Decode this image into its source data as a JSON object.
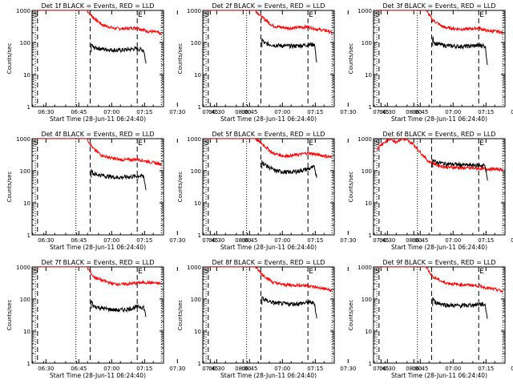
{
  "chart_data": {
    "type": "line",
    "grid": false,
    "yscale": "log",
    "ylim": [
      1,
      1000
    ],
    "ylabel": "Counts/sec",
    "xlabel": "Start Time (28-Jun-11 06:24:40)",
    "x_ticks": [
      "06:30",
      "06:45",
      "07:00",
      "07:15",
      "07:30",
      "07:45",
      "08:00"
    ],
    "y_ticks": [
      "1",
      "10",
      "100",
      "1000"
    ],
    "x_range_minutes": [
      -1.0,
      59.0
    ],
    "markers": {
      "dotted": [
        0.5,
        19.0,
        58.0
      ],
      "dashed": [
        1.5,
        25.5,
        47.0
      ]
    },
    "marker_labels": [
      "S",
      "E"
    ],
    "series_colors": {
      "events": "#000000",
      "lld": "#ff0000"
    },
    "panels": [
      {
        "title": "Det 1f BLACK = Events, RED = LLD",
        "events": [
          [
            26,
            90
          ],
          [
            27,
            70
          ],
          [
            32,
            62
          ],
          [
            38,
            57
          ],
          [
            42,
            60
          ],
          [
            46,
            64
          ],
          [
            48,
            62
          ],
          [
            50,
            58
          ],
          [
            51,
            22
          ]
        ],
        "lld": [
          [
            0.5,
            1000
          ],
          [
            6,
            1000
          ],
          [
            24,
            1000
          ],
          [
            27,
            600
          ],
          [
            31,
            360
          ],
          [
            36,
            280
          ],
          [
            40,
            270
          ],
          [
            44,
            280
          ],
          [
            47,
            290
          ],
          [
            51,
            230
          ],
          [
            56,
            210
          ],
          [
            58,
            180
          ]
        ]
      },
      {
        "title": "Det 2f BLACK = Events, RED = LLD",
        "events": [
          [
            26,
            130
          ],
          [
            27,
            95
          ],
          [
            32,
            82
          ],
          [
            38,
            78
          ],
          [
            42,
            79
          ],
          [
            46,
            84
          ],
          [
            48,
            86
          ],
          [
            50,
            88
          ],
          [
            51,
            24
          ]
        ],
        "lld": [
          [
            0.5,
            1000
          ],
          [
            6,
            1000
          ],
          [
            23,
            1000
          ],
          [
            26,
            620
          ],
          [
            31,
            330
          ],
          [
            36,
            290
          ],
          [
            40,
            280
          ],
          [
            44,
            300
          ],
          [
            47,
            310
          ],
          [
            51,
            260
          ],
          [
            56,
            230
          ],
          [
            58,
            200
          ]
        ]
      },
      {
        "title": "Det 3f BLACK = Events, RED = LLD",
        "events": [
          [
            26,
            140
          ],
          [
            27,
            95
          ],
          [
            32,
            80
          ],
          [
            38,
            76
          ],
          [
            42,
            77
          ],
          [
            46,
            80
          ],
          [
            48,
            82
          ],
          [
            50,
            78
          ],
          [
            51,
            20
          ]
        ],
        "lld": [
          [
            0.5,
            1000
          ],
          [
            6,
            1000
          ],
          [
            23,
            1000
          ],
          [
            26,
            500
          ],
          [
            31,
            300
          ],
          [
            36,
            270
          ],
          [
            40,
            260
          ],
          [
            44,
            270
          ],
          [
            47,
            280
          ],
          [
            51,
            230
          ],
          [
            56,
            220
          ],
          [
            58,
            200
          ]
        ]
      },
      {
        "title": "Det 4f BLACK = Events, RED = LLD",
        "events": [
          [
            26,
            110
          ],
          [
            27,
            80
          ],
          [
            32,
            70
          ],
          [
            38,
            62
          ],
          [
            42,
            64
          ],
          [
            46,
            67
          ],
          [
            48,
            70
          ],
          [
            50,
            66
          ],
          [
            51,
            25
          ]
        ],
        "lld": [
          [
            0.5,
            1000
          ],
          [
            6,
            1000
          ],
          [
            24,
            1000
          ],
          [
            27,
            480
          ],
          [
            31,
            300
          ],
          [
            36,
            240
          ],
          [
            40,
            220
          ],
          [
            44,
            220
          ],
          [
            47,
            230
          ],
          [
            51,
            200
          ],
          [
            56,
            170
          ],
          [
            58,
            160
          ]
        ]
      },
      {
        "title": "Det 5f BLACK = Events, RED = LLD",
        "events": [
          [
            26,
            210
          ],
          [
            27,
            160
          ],
          [
            32,
            100
          ],
          [
            38,
            90
          ],
          [
            42,
            95
          ],
          [
            46,
            110
          ],
          [
            48,
            120
          ],
          [
            50,
            130
          ],
          [
            51,
            60
          ]
        ],
        "lld": [
          [
            0.5,
            1000
          ],
          [
            6,
            1000
          ],
          [
            23,
            1000
          ],
          [
            26,
            700
          ],
          [
            31,
            350
          ],
          [
            36,
            290
          ],
          [
            40,
            300
          ],
          [
            44,
            330
          ],
          [
            47,
            360
          ],
          [
            51,
            320
          ],
          [
            56,
            280
          ],
          [
            58,
            260
          ]
        ]
      },
      {
        "title": "Det 6f BLACK = Events, RED = LLD",
        "events": [
          [
            26,
            230
          ],
          [
            27,
            190
          ],
          [
            32,
            165
          ],
          [
            38,
            155
          ],
          [
            42,
            150
          ],
          [
            46,
            148
          ],
          [
            48,
            148
          ],
          [
            50,
            145
          ],
          [
            51,
            50
          ]
        ],
        "lld": [
          [
            0.5,
            500
          ],
          [
            3,
            700
          ],
          [
            7,
            1000
          ],
          [
            9,
            800
          ],
          [
            12,
            1000
          ],
          [
            14,
            900
          ],
          [
            17,
            700
          ],
          [
            20,
            400
          ],
          [
            24,
            200
          ],
          [
            28,
            150
          ],
          [
            32,
            130
          ],
          [
            38,
            125
          ],
          [
            44,
            120
          ],
          [
            50,
            115
          ],
          [
            58,
            110
          ]
        ]
      },
      {
        "title": "Det 7f BLACK = Events, RED = LLD",
        "events": [
          [
            26,
            90
          ],
          [
            27,
            60
          ],
          [
            32,
            50
          ],
          [
            38,
            45
          ],
          [
            42,
            47
          ],
          [
            46,
            55
          ],
          [
            48,
            58
          ],
          [
            50,
            55
          ],
          [
            51,
            28
          ]
        ],
        "lld": [
          [
            0.5,
            1000
          ],
          [
            6,
            1000
          ],
          [
            24,
            1000
          ],
          [
            27,
            500
          ],
          [
            31,
            380
          ],
          [
            36,
            300
          ],
          [
            40,
            290
          ],
          [
            44,
            300
          ],
          [
            47,
            320
          ],
          [
            51,
            330
          ],
          [
            56,
            310
          ],
          [
            58,
            300
          ]
        ]
      },
      {
        "title": "Det 8f BLACK = Events, RED = LLD",
        "events": [
          [
            26,
            120
          ],
          [
            27,
            95
          ],
          [
            32,
            75
          ],
          [
            38,
            70
          ],
          [
            42,
            72
          ],
          [
            46,
            76
          ],
          [
            48,
            78
          ],
          [
            50,
            75
          ],
          [
            51,
            25
          ]
        ],
        "lld": [
          [
            0.5,
            1000
          ],
          [
            6,
            1000
          ],
          [
            23,
            1000
          ],
          [
            26,
            600
          ],
          [
            31,
            330
          ],
          [
            36,
            280
          ],
          [
            40,
            270
          ],
          [
            44,
            270
          ],
          [
            47,
            260
          ],
          [
            51,
            230
          ],
          [
            56,
            200
          ],
          [
            58,
            180
          ]
        ]
      },
      {
        "title": "Det 9f BLACK = Events, RED = LLD",
        "events": [
          [
            26,
            110
          ],
          [
            27,
            80
          ],
          [
            32,
            65
          ],
          [
            38,
            62
          ],
          [
            42,
            64
          ],
          [
            46,
            67
          ],
          [
            48,
            70
          ],
          [
            50,
            66
          ],
          [
            51,
            24
          ]
        ],
        "lld": [
          [
            0.5,
            1000
          ],
          [
            6,
            1000
          ],
          [
            23,
            1000
          ],
          [
            26,
            500
          ],
          [
            31,
            330
          ],
          [
            36,
            290
          ],
          [
            40,
            280
          ],
          [
            44,
            270
          ],
          [
            47,
            260
          ],
          [
            51,
            220
          ],
          [
            56,
            190
          ],
          [
            58,
            170
          ]
        ]
      }
    ]
  }
}
